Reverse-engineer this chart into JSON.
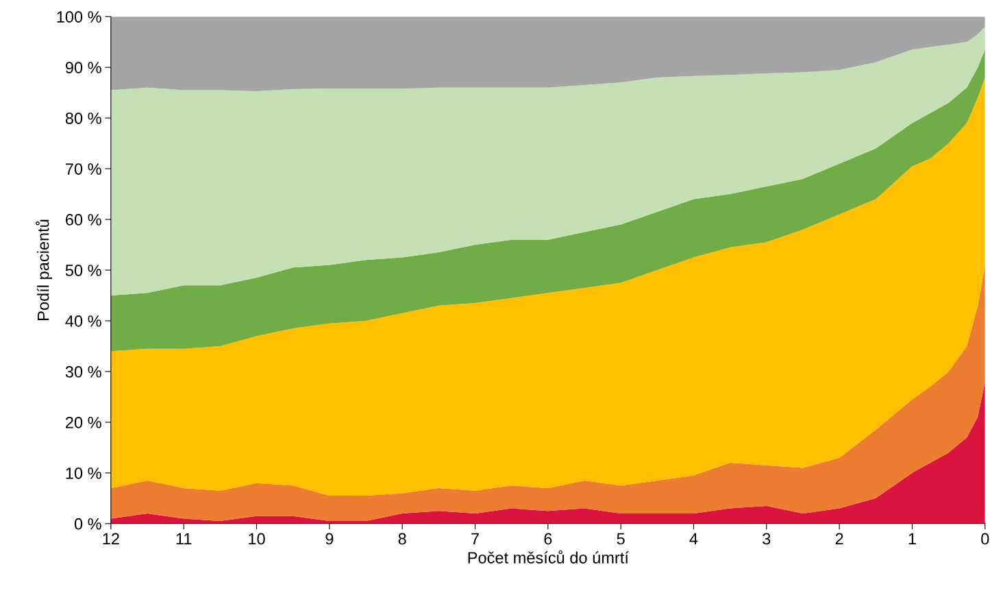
{
  "chart_data": {
    "type": "area",
    "stacked": true,
    "xlabel": "Počet měsíců do úmrtí",
    "ylabel": "Podíl pacientů",
    "x": [
      12,
      11.5,
      11,
      10.5,
      10,
      9.5,
      9,
      8.5,
      8,
      7.5,
      7,
      6.5,
      6,
      5.5,
      5,
      4.5,
      4,
      3.5,
      3,
      2.5,
      2,
      1.5,
      1,
      0.75,
      0.5,
      0.25,
      0.1,
      0
    ],
    "xlim": [
      12,
      0
    ],
    "xticks": [
      12,
      11,
      10,
      9,
      8,
      7,
      6,
      5,
      4,
      3,
      2,
      1,
      0
    ],
    "ylim": [
      0,
      100
    ],
    "yticks": [
      {
        "value": 0,
        "label": "0 %"
      },
      {
        "value": 10,
        "label": "10 %"
      },
      {
        "value": 20,
        "label": "20 %"
      },
      {
        "value": 30,
        "label": "30 %"
      },
      {
        "value": 40,
        "label": "40 %"
      },
      {
        "value": 50,
        "label": "50 %"
      },
      {
        "value": 60,
        "label": "60 %"
      },
      {
        "value": 70,
        "label": "70 %"
      },
      {
        "value": 80,
        "label": "80 %"
      },
      {
        "value": 90,
        "label": "90 %"
      },
      {
        "value": 100,
        "label": "100 %"
      }
    ],
    "grid": false,
    "series": [
      {
        "color": "#d9153f",
        "values": [
          1,
          2,
          1,
          0.5,
          1.5,
          1.5,
          0.5,
          0.5,
          2,
          2.5,
          2,
          3,
          2.5,
          3,
          2,
          2,
          2,
          3,
          3.5,
          2,
          3,
          5,
          10,
          12,
          14,
          17,
          21,
          28
        ]
      },
      {
        "color": "#ed7d31",
        "values": [
          6,
          6.5,
          6,
          6,
          6.5,
          6,
          5,
          5,
          4,
          4.5,
          4.5,
          4.5,
          4.5,
          5.5,
          5.5,
          6.5,
          7.5,
          9,
          8,
          9,
          10,
          13.5,
          14.5,
          15,
          16,
          18,
          22,
          23
        ]
      },
      {
        "color": "#ffc000",
        "values": [
          27,
          26,
          27.5,
          28.5,
          29,
          31,
          34,
          34.5,
          35.5,
          36,
          37,
          37,
          38.5,
          38,
          40,
          41.5,
          43,
          42.5,
          44,
          47,
          48,
          45.5,
          46,
          45,
          45,
          44,
          41,
          37
        ]
      },
      {
        "color": "#70ad47",
        "values": [
          11,
          11,
          12.5,
          12,
          11.5,
          12,
          11.5,
          12,
          11,
          10.5,
          11.5,
          11.5,
          10.5,
          11,
          11.5,
          11.5,
          11.5,
          10.5,
          11,
          10,
          10,
          10,
          8.5,
          9,
          8,
          7,
          6,
          5.5
        ]
      },
      {
        "color": "#c5e0b4",
        "values": [
          40.5,
          40.5,
          38.5,
          38.5,
          36.8,
          35.2,
          34.8,
          33.8,
          33.3,
          32.5,
          31,
          30,
          30,
          29,
          28,
          26.5,
          24.3,
          23.5,
          22.3,
          21,
          18.5,
          17,
          14.5,
          13,
          11.5,
          9,
          6.5,
          4.5
        ]
      },
      {
        "color": "#a5a5a5",
        "values": [
          14.5,
          14,
          14.5,
          14.5,
          14.7,
          14.3,
          14.2,
          14.2,
          14.2,
          14,
          14,
          14,
          14,
          13.5,
          13,
          12,
          11.7,
          11.5,
          11.2,
          11,
          10.5,
          9,
          6.5,
          6,
          5.5,
          5,
          3.5,
          2
        ]
      }
    ]
  }
}
